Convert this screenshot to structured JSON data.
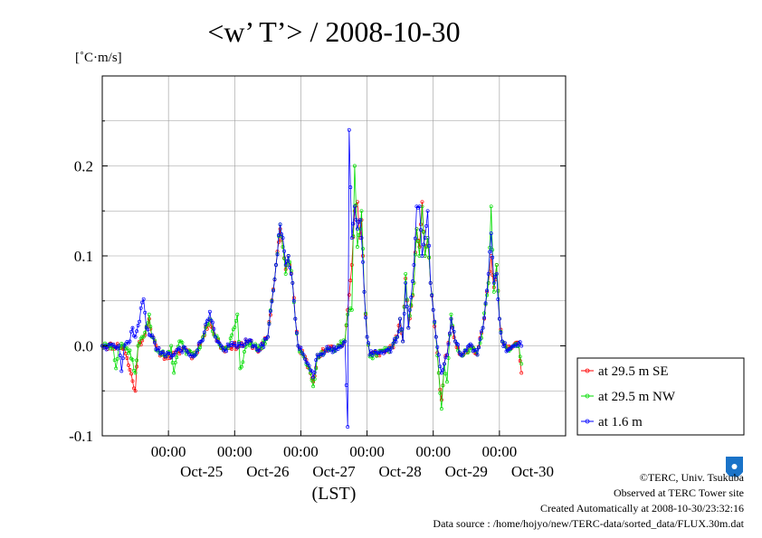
{
  "chart_data": {
    "type": "line",
    "title": "<w’ T’> / 2008-10-30",
    "ylabel": "[˚C·m/s]",
    "xlabel": "(LST)",
    "ylim": [
      -0.1,
      0.3
    ],
    "yticks": [
      -0.1,
      0.0,
      0.1,
      0.2
    ],
    "ytick_labels": [
      "-0.1",
      "0.0",
      "0.1",
      "0.2"
    ],
    "xlim": [
      -24,
      144
    ],
    "xtick_hours": [
      0,
      24,
      48,
      72,
      96,
      120
    ],
    "xtick_labels": [
      "00:00",
      "00:00",
      "00:00",
      "00:00",
      "00:00",
      "00:00"
    ],
    "xday_hours": [
      12,
      36,
      60,
      84,
      108,
      132
    ],
    "xday_labels": [
      "Oct-25",
      "Oct-26",
      "Oct-27",
      "Oct-28",
      "Oct-29",
      "Oct-30"
    ],
    "grid": true,
    "legend_position": "right",
    "series": [
      {
        "name": "at 29.5 m SE",
        "color": "#ff0000",
        "keypoints": [
          [
            -24,
            0.0
          ],
          [
            -18,
            0.0
          ],
          [
            -16,
            -0.003
          ],
          [
            -12,
            -0.05
          ],
          [
            -11,
            0.0
          ],
          [
            -9,
            0.01
          ],
          [
            -7,
            0.03
          ],
          [
            -6,
            0.01
          ],
          [
            -4,
            -0.005
          ],
          [
            -1,
            -0.012
          ],
          [
            2,
            -0.01
          ],
          [
            6,
            -0.002
          ],
          [
            9,
            -0.012
          ],
          [
            12,
            0.005
          ],
          [
            15,
            0.03
          ],
          [
            17,
            0.01
          ],
          [
            20,
            -0.005
          ],
          [
            22,
            0.0
          ],
          [
            26,
            0.0
          ],
          [
            29,
            0.005
          ],
          [
            31,
            0.0
          ],
          [
            33,
            -0.005
          ],
          [
            36,
            0.01
          ],
          [
            39,
            0.09
          ],
          [
            40.5,
            0.13
          ],
          [
            41.5,
            0.11
          ],
          [
            42.5,
            0.085
          ],
          [
            43.5,
            0.1
          ],
          [
            45,
            0.07
          ],
          [
            46,
            0.03
          ],
          [
            47,
            0.0
          ],
          [
            49,
            -0.01
          ],
          [
            51,
            -0.025
          ],
          [
            52.5,
            -0.04
          ],
          [
            54,
            -0.01
          ],
          [
            57,
            -0.005
          ],
          [
            61,
            -0.002
          ],
          [
            64,
            0.005
          ],
          [
            65,
            0.04
          ],
          [
            66.5,
            0.09
          ],
          [
            67.5,
            0.15
          ],
          [
            68.5,
            0.16
          ],
          [
            69.5,
            0.12
          ],
          [
            70,
            0.14
          ],
          [
            71,
            0.06
          ],
          [
            72,
            0.01
          ],
          [
            73,
            -0.01
          ],
          [
            76,
            -0.008
          ],
          [
            79,
            -0.005
          ],
          [
            81,
            -0.002
          ],
          [
            83,
            0.01
          ],
          [
            84,
            0.03
          ],
          [
            85,
            0.005
          ],
          [
            86,
            0.075
          ],
          [
            87,
            0.02
          ],
          [
            89,
            0.07
          ],
          [
            90,
            0.13
          ],
          [
            91,
            0.11
          ],
          [
            92,
            0.16
          ],
          [
            93,
            0.1
          ],
          [
            94,
            0.12
          ],
          [
            95,
            0.07
          ],
          [
            96,
            0.04
          ],
          [
            97,
            0.01
          ],
          [
            98,
            -0.03
          ],
          [
            99,
            -0.06
          ],
          [
            100,
            -0.02
          ],
          [
            101,
            -0.01
          ],
          [
            102.5,
            0.03
          ],
          [
            104,
            0.005
          ],
          [
            106,
            -0.01
          ],
          [
            108,
            -0.005
          ],
          [
            110,
            0.0
          ],
          [
            112,
            -0.01
          ],
          [
            114,
            0.02
          ],
          [
            116,
            0.07
          ],
          [
            117,
            0.1
          ],
          [
            118,
            0.065
          ],
          [
            119,
            0.09
          ],
          [
            120,
            0.03
          ],
          [
            121,
            0.005
          ],
          [
            123,
            -0.005
          ],
          [
            125,
            0.0
          ],
          [
            127,
            0.003
          ],
          [
            128,
            -0.03
          ]
        ],
        "seed": 11
      },
      {
        "name": "at 29.5 m NW",
        "color": "#00dd00",
        "keypoints": [
          [
            -24,
            0.0
          ],
          [
            -20,
            -0.002
          ],
          [
            -19,
            -0.025
          ],
          [
            -18,
            0.0
          ],
          [
            -14,
            -0.005
          ],
          [
            -12,
            -0.03
          ],
          [
            -11,
            0.0
          ],
          [
            -9,
            0.01
          ],
          [
            -7,
            0.035
          ],
          [
            -6,
            0.01
          ],
          [
            -4,
            -0.005
          ],
          [
            -1,
            -0.012
          ],
          [
            1,
            0.0
          ],
          [
            2,
            -0.03
          ],
          [
            4,
            0.005
          ],
          [
            6,
            -0.005
          ],
          [
            9,
            -0.012
          ],
          [
            12,
            0.005
          ],
          [
            15,
            0.03
          ],
          [
            17,
            0.01
          ],
          [
            20,
            -0.005
          ],
          [
            22,
            0.0
          ],
          [
            25,
            0.035
          ],
          [
            26,
            -0.025
          ],
          [
            29,
            0.005
          ],
          [
            31,
            0.0
          ],
          [
            33,
            -0.005
          ],
          [
            36,
            0.01
          ],
          [
            39,
            0.09
          ],
          [
            40.5,
            0.135
          ],
          [
            41.5,
            0.11
          ],
          [
            42.5,
            0.08
          ],
          [
            43.5,
            0.1
          ],
          [
            45,
            0.07
          ],
          [
            46,
            0.03
          ],
          [
            47,
            0.0
          ],
          [
            49,
            -0.012
          ],
          [
            51,
            -0.025
          ],
          [
            52.5,
            -0.045
          ],
          [
            54,
            -0.01
          ],
          [
            57,
            -0.005
          ],
          [
            61,
            -0.002
          ],
          [
            64,
            0.005
          ],
          [
            65,
            0.035
          ],
          [
            66.5,
            0.04
          ],
          [
            67.5,
            0.2
          ],
          [
            68.5,
            0.11
          ],
          [
            69.5,
            0.13
          ],
          [
            70,
            0.15
          ],
          [
            71,
            0.06
          ],
          [
            72,
            0.01
          ],
          [
            73,
            -0.012
          ],
          [
            76,
            -0.008
          ],
          [
            79,
            -0.005
          ],
          [
            81,
            -0.002
          ],
          [
            83,
            0.01
          ],
          [
            84,
            0.03
          ],
          [
            85,
            0.005
          ],
          [
            86,
            0.08
          ],
          [
            87,
            0.02
          ],
          [
            89,
            0.07
          ],
          [
            90,
            0.13
          ],
          [
            91,
            0.1
          ],
          [
            92,
            0.155
          ],
          [
            93,
            0.1
          ],
          [
            94,
            0.12
          ],
          [
            95,
            0.07
          ],
          [
            96,
            0.04
          ],
          [
            97,
            0.01
          ],
          [
            98,
            -0.03
          ],
          [
            99,
            -0.07
          ],
          [
            100,
            -0.02
          ],
          [
            101,
            -0.04
          ],
          [
            102.5,
            0.035
          ],
          [
            104,
            0.005
          ],
          [
            106,
            -0.01
          ],
          [
            108,
            -0.005
          ],
          [
            110,
            0.0
          ],
          [
            112,
            -0.01
          ],
          [
            114,
            0.02
          ],
          [
            116,
            0.07
          ],
          [
            117,
            0.155
          ],
          [
            118,
            0.06
          ],
          [
            119,
            0.09
          ],
          [
            120,
            0.03
          ],
          [
            121,
            0.005
          ],
          [
            123,
            -0.005
          ],
          [
            125,
            0.0
          ],
          [
            127,
            0.003
          ],
          [
            128,
            -0.02
          ]
        ],
        "seed": 29
      },
      {
        "name": "at 1.6 m",
        "color": "#0000ff",
        "keypoints": [
          [
            -24,
            0.0
          ],
          [
            -18,
            0.0
          ],
          [
            -17,
            -0.028
          ],
          [
            -16,
            0.0
          ],
          [
            -14,
            0.005
          ],
          [
            -13,
            0.02
          ],
          [
            -12,
            0.01
          ],
          [
            -9,
            0.052
          ],
          [
            -8,
            0.02
          ],
          [
            -6,
            0.012
          ],
          [
            -4,
            -0.005
          ],
          [
            -1,
            -0.012
          ],
          [
            2,
            -0.01
          ],
          [
            6,
            -0.002
          ],
          [
            9,
            -0.012
          ],
          [
            12,
            0.005
          ],
          [
            15,
            0.038
          ],
          [
            17,
            0.01
          ],
          [
            20,
            -0.005
          ],
          [
            22,
            0.0
          ],
          [
            26,
            0.0
          ],
          [
            29,
            0.005
          ],
          [
            31,
            0.0
          ],
          [
            33,
            -0.005
          ],
          [
            36,
            0.01
          ],
          [
            39,
            0.09
          ],
          [
            40.5,
            0.135
          ],
          [
            41.5,
            0.12
          ],
          [
            42.5,
            0.09
          ],
          [
            43.5,
            0.1
          ],
          [
            45,
            0.07
          ],
          [
            46,
            0.03
          ],
          [
            47,
            0.0
          ],
          [
            49,
            -0.01
          ],
          [
            51,
            -0.022
          ],
          [
            52.5,
            -0.035
          ],
          [
            54,
            -0.01
          ],
          [
            57,
            -0.005
          ],
          [
            61,
            -0.002
          ],
          [
            64,
            0.005
          ],
          [
            65,
            -0.09
          ],
          [
            65.5,
            0.24
          ],
          [
            66.5,
            0.12
          ],
          [
            67.5,
            0.155
          ],
          [
            68.5,
            0.13
          ],
          [
            69.5,
            0.14
          ],
          [
            70,
            0.12
          ],
          [
            71,
            0.06
          ],
          [
            72,
            0.01
          ],
          [
            73,
            -0.01
          ],
          [
            76,
            -0.008
          ],
          [
            79,
            -0.005
          ],
          [
            81,
            -0.002
          ],
          [
            83,
            0.01
          ],
          [
            84,
            0.03
          ],
          [
            85,
            0.005
          ],
          [
            86,
            0.07
          ],
          [
            87,
            0.02
          ],
          [
            89,
            0.09
          ],
          [
            90,
            0.155
          ],
          [
            91,
            0.155
          ],
          [
            92,
            0.1
          ],
          [
            93,
            0.12
          ],
          [
            94,
            0.15
          ],
          [
            95,
            0.07
          ],
          [
            96,
            0.04
          ],
          [
            97,
            0.01
          ],
          [
            98,
            -0.01
          ],
          [
            99,
            -0.03
          ],
          [
            100,
            -0.02
          ],
          [
            101,
            -0.01
          ],
          [
            102.5,
            0.03
          ],
          [
            104,
            0.005
          ],
          [
            106,
            -0.01
          ],
          [
            108,
            -0.005
          ],
          [
            110,
            0.0
          ],
          [
            112,
            -0.01
          ],
          [
            114,
            0.02
          ],
          [
            116,
            0.08
          ],
          [
            117,
            0.125
          ],
          [
            118,
            0.07
          ],
          [
            119,
            0.08
          ],
          [
            120,
            0.03
          ],
          [
            121,
            0.005
          ],
          [
            123,
            -0.005
          ],
          [
            125,
            0.0
          ],
          [
            127,
            0.003
          ],
          [
            128,
            0.0
          ]
        ],
        "seed": 47
      }
    ]
  },
  "footer": {
    "copyright": "©TERC, Univ. Tsukuba",
    "observed": "Observed at TERC Tower site",
    "created": "Created Automatically at 2008-10-30/23:32:16",
    "datasource": "Data source : /home/hojyo/new/TERC-data/sorted_data/FLUX.30m.dat"
  },
  "logo": {
    "text": "TERC",
    "color": "#1a73c8"
  }
}
